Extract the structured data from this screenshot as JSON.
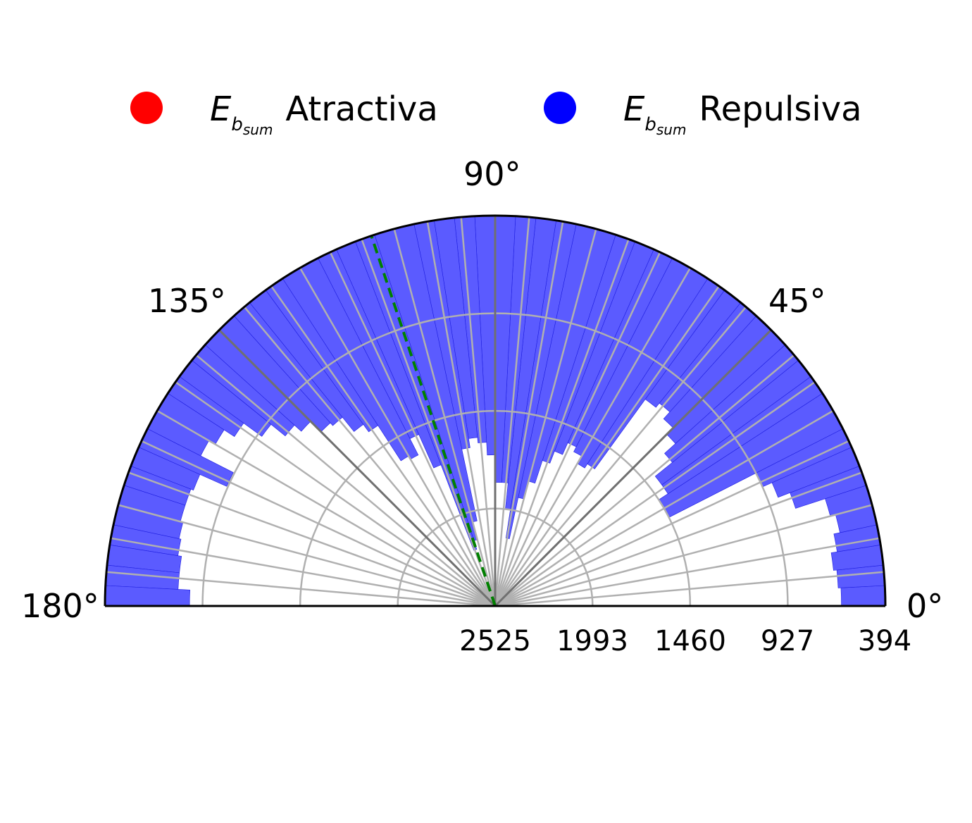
{
  "chart_data": {
    "type": "polar-bar",
    "legend": [
      {
        "symbol": "E",
        "subscript_b": "b",
        "subscript_sum": "sum",
        "label": "Atractiva",
        "color": "#ff0000"
      },
      {
        "symbol": "E",
        "subscript_b": "b",
        "subscript_sum": "sum",
        "label": "Repulsiva",
        "color": "#0000ff"
      }
    ],
    "legend_placement": "top",
    "angle_ticks": [
      "0°",
      "45°",
      "90°",
      "135°",
      "180°"
    ],
    "angle_tick_values": [
      0,
      45,
      90,
      135,
      180
    ],
    "radial_ticks": [
      "2525",
      "1993",
      "1460",
      "927",
      "394"
    ],
    "radial_tick_values": [
      2525,
      1993,
      1460,
      927,
      394
    ],
    "r_axis_inverted": true,
    "theta_range": [
      0,
      180
    ],
    "bin_width_deg": 3,
    "bar_color": "#5b5bff",
    "bar_edge_color": "#2020e0",
    "dashed_line": {
      "angle_deg": 108.5,
      "color": "#008000"
    },
    "grid": true,
    "series": [
      {
        "name": "Repulsiva",
        "bin_centers_deg": [
          1.5,
          4.5,
          7.5,
          10.5,
          13.5,
          16.5,
          19.5,
          22.5,
          25.5,
          28.5,
          31.5,
          34.5,
          37.5,
          40.5,
          43.5,
          46.5,
          49.5,
          52.5,
          55.5,
          58.5,
          61.5,
          64.5,
          67.5,
          70.5,
          73.5,
          76.5,
          79.5,
          82.5,
          85.5,
          88.5,
          91.5,
          94.5,
          97.5,
          100.5,
          103.5,
          106.5,
          109.5,
          112.5,
          115.5,
          118.5,
          121.5,
          124.5,
          127.5,
          130.5,
          133.5,
          136.5,
          139.5,
          142.5,
          145.5,
          148.5,
          151.5,
          154.5,
          157.5,
          160.5,
          163.5,
          166.5,
          169.5,
          172.5,
          175.5,
          178.5
        ],
        "values": [
          634,
          649,
          667,
          634,
          600,
          630,
          800,
          870,
          927,
          1460,
          1460,
          1400,
          1400,
          1280,
          1200,
          1150,
          1100,
          1130,
          1600,
          1627,
          1580,
          1550,
          1620,
          1690,
          1820,
          1920,
          2150,
          1993,
          1850,
          1850,
          1700,
          1630,
          1600,
          1650,
          2050,
          2150,
          2200,
          1700,
          1500,
          1600,
          1580,
          1350,
          1300,
          1200,
          1180,
          1100,
          1050,
          950,
          827,
          760,
          720,
          920,
          760,
          745,
          745,
          760,
          771,
          791,
          791,
          856
        ]
      }
    ]
  }
}
